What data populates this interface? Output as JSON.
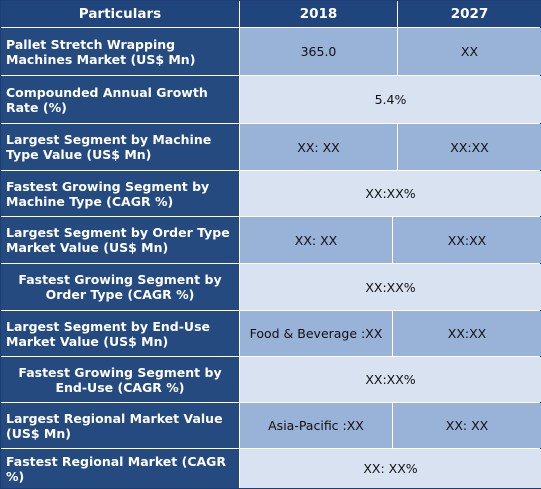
{
  "headers": {
    "particulars": "Particulars",
    "year1": "2018",
    "year2": "2027"
  },
  "rows": [
    {
      "label": "Pallet Stretch Wrapping Machines Market (US$ Mn)",
      "v2018": "365.0",
      "v2027": "XX"
    },
    {
      "label": "Compounded Annual Growth Rate (%)",
      "merged": "5.4%"
    },
    {
      "label": "Largest Segment by Machine Type Value (US$ Mn)",
      "v2018": "XX: XX",
      "v2027": "XX:XX"
    },
    {
      "label": "Fastest Growing Segment by Machine Type (CAGR %)",
      "merged": "XX:XX%"
    },
    {
      "label": "Largest Segment by Order Type Market Value (US$ Mn)",
      "v2018": "XX: XX",
      "v2027": "XX:XX"
    },
    {
      "label": "Fastest Growing Segment by Order Type (CAGR %)",
      "merged": "XX:XX%"
    },
    {
      "label": "Largest Segment by End-Use Market Value (US$ Mn)",
      "v2018": "Food & Beverage :XX",
      "v2027": "XX:XX"
    },
    {
      "label": "Fastest Growing Segment by End-Use (CAGR %)",
      "merged": "XX:XX%"
    },
    {
      "label": "Largest Regional Market Value (US$ Mn)",
      "v2018": "Asia-Pacific :XX",
      "v2027": "XX: XX"
    },
    {
      "label": "Fastest Regional Market (CAGR %)",
      "merged": "XX: XX%"
    }
  ]
}
